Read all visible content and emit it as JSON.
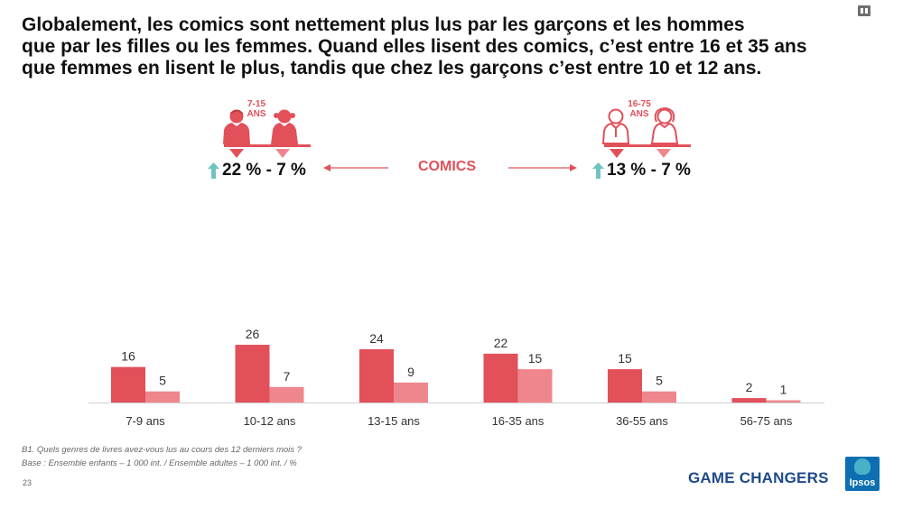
{
  "title_lines": [
    "Globalement, les comics sont nettement plus lus par les garçons et les hommes",
    "que par les filles ou les femmes. Quand elles lisent des comics, c’est entre 16 et 35 ans",
    "que femmes en lisent le plus, tandis que chez les garçons c’est entre 10 et 12 ans."
  ],
  "infographic": {
    "left_group": {
      "age_line1": "7-15",
      "age_line2": "ANS",
      "stat": "22 % - 7 %"
    },
    "center_label": "COMICS",
    "right_group": {
      "age_line1": "16-75",
      "age_line2": "ANS",
      "stat": "13 % - 7 %"
    }
  },
  "colors": {
    "male": "#e2505a",
    "female": "#f0868d",
    "accent_arrow": "#6fc4bf",
    "brand": "#1f4a89"
  },
  "chart_data": {
    "type": "bar",
    "categories": [
      "7-9 ans",
      "10-12 ans",
      "13-15 ans",
      "16-35 ans",
      "36-55 ans",
      "56-75 ans"
    ],
    "series": [
      {
        "values": [
          16,
          26,
          24,
          22,
          15,
          2
        ],
        "color": "#e2505a"
      },
      {
        "values": [
          5,
          7,
          9,
          15,
          5,
          1
        ],
        "color": "#f0868d"
      }
    ],
    "ylim": [
      0,
      26
    ],
    "grid": false,
    "data_labels": true
  },
  "footnote": {
    "line1": "B1. Quels genres de livres avez-vous lus au cours des 12 derniers mois ?",
    "line2": "Base : Ensemble enfants – 1 000 int. / Ensemble adultes – 1 000 int. / %"
  },
  "page_number": "23",
  "brand_text": "GAME CHANGERS",
  "logo_text": "Ipsos",
  "icons": [
    "boy-icon",
    "girl-icon",
    "man-icon",
    "woman-icon",
    "up-arrow-icon",
    "left-arrow-icon",
    "right-arrow-icon"
  ]
}
